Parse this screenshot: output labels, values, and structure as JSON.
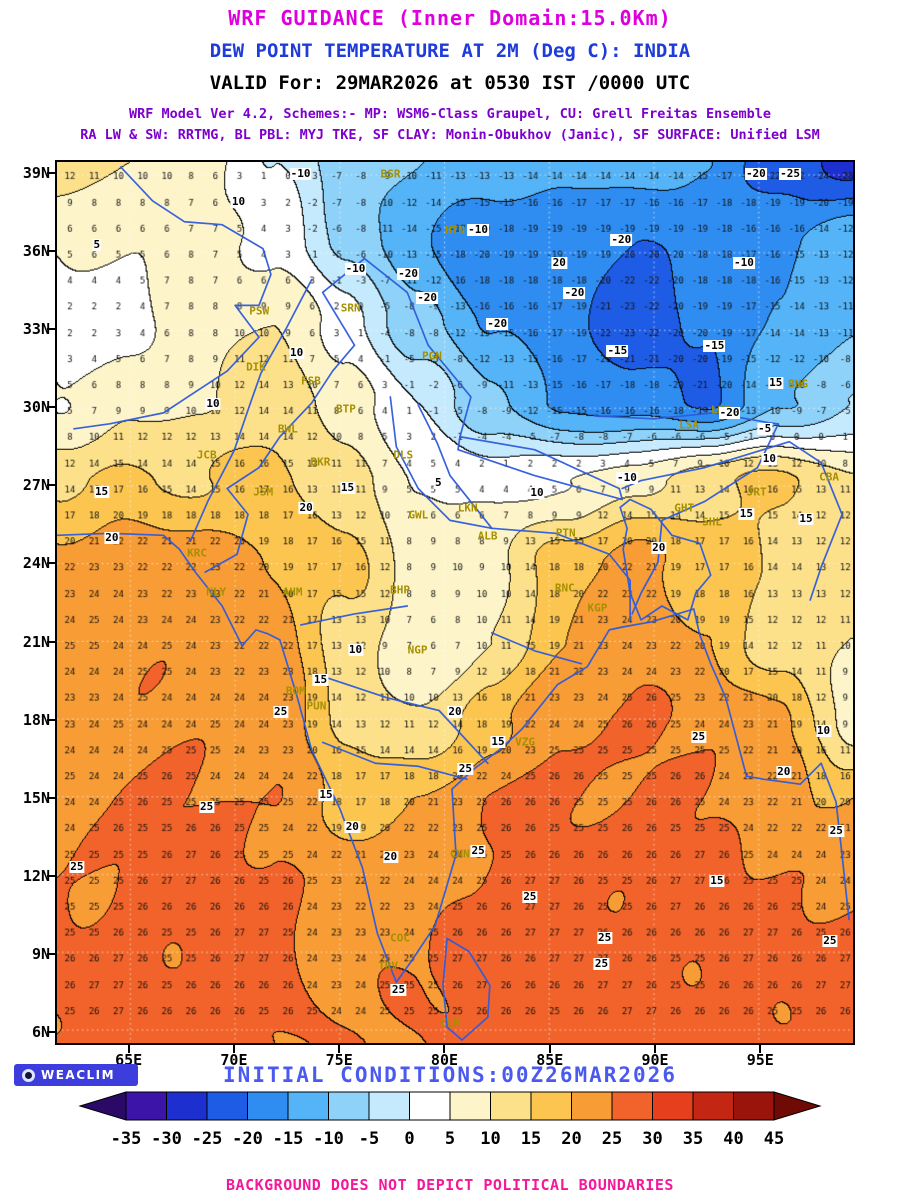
{
  "titles": {
    "line1": "WRF GUIDANCE (Inner Domain:15.0Km)",
    "line2": "DEW POINT TEMPERATURE AT 2M (Deg C): INDIA",
    "line3": "VALID For: 29MAR2026 at 0530 IST /0000 UTC",
    "line4": "WRF Model Ver 4.2, Schemes:- MP: WSM6-Class Graupel, CU: Grell Freitas Ensemble",
    "line5": "RA LW & SW: RRTMG, BL PBL: MYJ TKE, SF CLAY: Monin-Obukhov (Janic), SF SURFACE: Unified LSM"
  },
  "colors": {
    "title1": "#dd00dd",
    "title2": "#1f3cd8",
    "title3": "#000000",
    "schemes": "#7d00cc",
    "initial": "#4a5af0",
    "footer": "#f5189b",
    "station": "#a68f00",
    "geo": "#2e5bdb"
  },
  "axes": {
    "lat_ticks": [
      "39N",
      "36N",
      "33N",
      "30N",
      "27N",
      "24N",
      "21N",
      "18N",
      "15N",
      "12N",
      "9N",
      "6N"
    ],
    "lon_ticks": [
      "65E",
      "70E",
      "75E",
      "80E",
      "85E",
      "90E",
      "95E"
    ]
  },
  "footer": {
    "logo_text": "WEACLIM",
    "initial_conditions": "INITIAL CONDITIONS:00Z26MAR2026",
    "disclaimer": "BACKGROUND DOES NOT DEPICT POLITICAL BOUNDARIES"
  },
  "chart_data": {
    "type": "heatmap",
    "title": "DEW POINT TEMPERATURE AT 2M (Deg C): INDIA",
    "model": "WRF GUIDANCE (Inner Domain:15.0Km)",
    "valid_time": "29MAR2026 at 0530 IST /0000 UTC",
    "init_time": "00Z26MAR2026",
    "units": "Deg C",
    "contour_interval_c": 5,
    "domain": {
      "lon_min": 61.5,
      "lon_max": 99.5,
      "lat_min": 5.5,
      "lat_max": 39.5
    },
    "dewpoint_grid_c": [
      [
        12,
        10,
        8,
        0,
        -8,
        -10,
        -12,
        -14,
        -13,
        -15,
        -23,
        -27
      ],
      [
        6,
        5,
        7,
        4,
        -6,
        -15,
        -20,
        -18,
        -21,
        -18,
        -15,
        -12
      ],
      [
        2,
        3,
        8,
        10,
        2,
        -8,
        -15,
        -18,
        -23,
        -20,
        -15,
        -10
      ],
      [
        5,
        8,
        10,
        14,
        8,
        0,
        -10,
        -15,
        -18,
        -20,
        -10,
        -6
      ],
      [
        14,
        16,
        15,
        16,
        12,
        5,
        3,
        5,
        8,
        14,
        16,
        10
      ],
      [
        22,
        23,
        22,
        20,
        17,
        8,
        9,
        18,
        22,
        17,
        14,
        12
      ],
      [
        24,
        24,
        24,
        22,
        12,
        6,
        10,
        20,
        24,
        20,
        12,
        10
      ],
      [
        24,
        24,
        24,
        24,
        14,
        10,
        18,
        25,
        25,
        24,
        22,
        8
      ],
      [
        25,
        25,
        25,
        25,
        18,
        20,
        25,
        26,
        25,
        25,
        22,
        20
      ],
      [
        25,
        26,
        26,
        26,
        22,
        24,
        26,
        26,
        26,
        26,
        25,
        25
      ],
      [
        26,
        26,
        26,
        26,
        24,
        25,
        26,
        27,
        26,
        26,
        26,
        26
      ],
      [
        26,
        26,
        26,
        26,
        25,
        24,
        26,
        26,
        26,
        26,
        26,
        26
      ]
    ],
    "colorbar": {
      "tick_labels": [
        "-35",
        "-30",
        "-25",
        "-20",
        "-15",
        "-10",
        "-5",
        "0",
        "5",
        "10",
        "15",
        "20",
        "25",
        "30",
        "35",
        "40",
        "45"
      ],
      "arrow_low_color": "#2a0a66",
      "arrow_high_color": "#6f0a05",
      "segment_colors": [
        "#3d14a8",
        "#1e2fd0",
        "#1f5ce6",
        "#2f8df2",
        "#54b4f7",
        "#8ed2fa",
        "#c6eafd",
        "#ffffff",
        "#fdf5c9",
        "#fce08a",
        "#fbc550",
        "#f89c35",
        "#f1632a",
        "#e63f1e",
        "#c32613",
        "#9b140b"
      ]
    },
    "stations": [
      {
        "id": "BSR",
        "x": 41.9,
        "y": 1.4
      },
      {
        "id": "HTN",
        "x": 50.0,
        "y": 7.7
      },
      {
        "id": "PSW",
        "x": 25.4,
        "y": 16.9
      },
      {
        "id": "SRN",
        "x": 36.9,
        "y": 16.6
      },
      {
        "id": "DIK",
        "x": 25.0,
        "y": 23.3
      },
      {
        "id": "PGN",
        "x": 47.1,
        "y": 22.0
      },
      {
        "id": "FSB",
        "x": 31.9,
        "y": 24.9
      },
      {
        "id": "BNG",
        "x": 93.1,
        "y": 25.2
      },
      {
        "id": "BTP",
        "x": 36.3,
        "y": 28.0
      },
      {
        "id": "BWL",
        "x": 29.0,
        "y": 30.3
      },
      {
        "id": "LNZ",
        "x": 83.4,
        "y": 28.2
      },
      {
        "id": "LSA",
        "x": 79.4,
        "y": 29.9
      },
      {
        "id": "JCB",
        "x": 18.8,
        "y": 33.3
      },
      {
        "id": "BKR",
        "x": 33.1,
        "y": 34.1
      },
      {
        "id": "DLS",
        "x": 43.5,
        "y": 33.3
      },
      {
        "id": "CBA",
        "x": 97.0,
        "y": 35.8
      },
      {
        "id": "JSM",
        "x": 25.9,
        "y": 37.5
      },
      {
        "id": "JRT",
        "x": 87.9,
        "y": 37.5
      },
      {
        "id": "GHT",
        "x": 78.8,
        "y": 39.3
      },
      {
        "id": "SHL",
        "x": 82.3,
        "y": 40.9
      },
      {
        "id": "LKN",
        "x": 51.6,
        "y": 39.3
      },
      {
        "id": "GWL",
        "x": 45.4,
        "y": 40.1
      },
      {
        "id": "ALB",
        "x": 54.1,
        "y": 42.4
      },
      {
        "id": "PTN",
        "x": 63.9,
        "y": 42.1
      },
      {
        "id": "KRC",
        "x": 17.6,
        "y": 44.4
      },
      {
        "id": "NLY",
        "x": 20.0,
        "y": 48.8
      },
      {
        "id": "AHM",
        "x": 29.6,
        "y": 48.8
      },
      {
        "id": "BHP",
        "x": 43.1,
        "y": 48.6
      },
      {
        "id": "RNC",
        "x": 63.8,
        "y": 48.4
      },
      {
        "id": "KGP",
        "x": 67.9,
        "y": 50.6
      },
      {
        "id": "NGP",
        "x": 45.3,
        "y": 55.4
      },
      {
        "id": "BOM",
        "x": 30.0,
        "y": 60.0
      },
      {
        "id": "PUN",
        "x": 32.6,
        "y": 61.8
      },
      {
        "id": "VZG",
        "x": 58.8,
        "y": 65.8
      },
      {
        "id": "CHN",
        "x": 50.6,
        "y": 78.5
      },
      {
        "id": "COC",
        "x": 43.1,
        "y": 88.1
      },
      {
        "id": "TRV",
        "x": 41.6,
        "y": 91.3
      },
      {
        "id": "CLM",
        "x": 49.4,
        "y": 97.7
      }
    ],
    "contour_labels": [
      {
        "v": "-10",
        "x": 30.6,
        "y": 1.4
      },
      {
        "v": "10",
        "x": 22.8,
        "y": 4.5
      },
      {
        "v": "-10",
        "x": 52.9,
        "y": 7.7
      },
      {
        "v": "5",
        "x": 5.0,
        "y": 9.4
      },
      {
        "v": "-10",
        "x": 37.5,
        "y": 12.2
      },
      {
        "v": "-20",
        "x": 44.1,
        "y": 12.7
      },
      {
        "v": "20",
        "x": 63.1,
        "y": 11.5
      },
      {
        "v": "-20",
        "x": 70.9,
        "y": 8.8
      },
      {
        "v": "-10",
        "x": 86.3,
        "y": 11.5
      },
      {
        "v": "-20",
        "x": 87.8,
        "y": 1.4
      },
      {
        "v": "-25",
        "x": 92.1,
        "y": 1.4
      },
      {
        "v": "-20",
        "x": 46.5,
        "y": 15.4
      },
      {
        "v": "-20",
        "x": 65.0,
        "y": 14.9
      },
      {
        "v": "-20",
        "x": 55.3,
        "y": 18.4
      },
      {
        "v": "-15",
        "x": 70.4,
        "y": 21.5
      },
      {
        "v": "-15",
        "x": 82.6,
        "y": 20.9
      },
      {
        "v": "10",
        "x": 30.1,
        "y": 21.7
      },
      {
        "v": "15",
        "x": 90.3,
        "y": 25.1
      },
      {
        "v": "10",
        "x": 19.6,
        "y": 27.5
      },
      {
        "v": "-20",
        "x": 84.5,
        "y": 28.5
      },
      {
        "v": "-5",
        "x": 88.9,
        "y": 30.3
      },
      {
        "v": "10",
        "x": 89.5,
        "y": 33.7
      },
      {
        "v": "-10",
        "x": 71.6,
        "y": 35.9
      },
      {
        "v": "15",
        "x": 5.6,
        "y": 37.5
      },
      {
        "v": "15",
        "x": 36.5,
        "y": 37.0
      },
      {
        "v": "5",
        "x": 47.9,
        "y": 36.4
      },
      {
        "v": "10",
        "x": 60.3,
        "y": 37.6
      },
      {
        "v": "20",
        "x": 6.9,
        "y": 42.7
      },
      {
        "v": "20",
        "x": 31.3,
        "y": 39.3
      },
      {
        "v": "20",
        "x": 75.6,
        "y": 43.8
      },
      {
        "v": "15",
        "x": 86.6,
        "y": 39.9
      },
      {
        "v": "15",
        "x": 94.1,
        "y": 40.5
      },
      {
        "v": "10",
        "x": 37.5,
        "y": 55.4
      },
      {
        "v": "15",
        "x": 33.1,
        "y": 58.8
      },
      {
        "v": "25",
        "x": 28.1,
        "y": 62.4
      },
      {
        "v": "20",
        "x": 50.0,
        "y": 62.4
      },
      {
        "v": "15",
        "x": 55.4,
        "y": 65.8
      },
      {
        "v": "25",
        "x": 80.6,
        "y": 65.3
      },
      {
        "v": "10",
        "x": 96.3,
        "y": 64.6
      },
      {
        "v": "20",
        "x": 91.3,
        "y": 69.2
      },
      {
        "v": "25",
        "x": 51.3,
        "y": 68.9
      },
      {
        "v": "15",
        "x": 33.8,
        "y": 71.8
      },
      {
        "v": "25",
        "x": 18.8,
        "y": 73.2
      },
      {
        "v": "20",
        "x": 37.1,
        "y": 75.5
      },
      {
        "v": "25",
        "x": 97.9,
        "y": 75.9
      },
      {
        "v": "20",
        "x": 41.9,
        "y": 78.9
      },
      {
        "v": "25",
        "x": 52.9,
        "y": 78.2
      },
      {
        "v": "25",
        "x": 59.4,
        "y": 83.4
      },
      {
        "v": "15",
        "x": 82.9,
        "y": 81.6
      },
      {
        "v": "25",
        "x": 2.5,
        "y": 80.0
      },
      {
        "v": "25",
        "x": 68.8,
        "y": 88.1
      },
      {
        "v": "25",
        "x": 68.4,
        "y": 91.0
      },
      {
        "v": "25",
        "x": 42.9,
        "y": 94.0
      },
      {
        "v": "25",
        "x": 97.1,
        "y": 88.4
      }
    ],
    "geo_paths": [
      "M 0 375 L 53 373 L 107 375 L 123 389 L 139 412 L 166 446 L 186 486 L 200 470 L 212 474 L 224 480 L 241 536 L 256 591 L 284 649 L 307 709 L 322 775 L 341 824 L 356 803 L 380 767 L 401 696 L 397 630 L 420 609 L 444 591 L 467 570 L 503 525 L 533 507 L 555 470 L 569 467 L 597 462 L 640 449 L 646 475 L 657 504 L 672 538 L 693 617 L 710 620 L 725 622 L 747 625 L 768 604 L 783 643 L 789 696 L 796 761",
      "M 392 780 L 414 793 L 435 827 L 433 859 L 407 882 L 392 869 L 388 827 Z",
      "M 256 118 L 231 166 L 205 212 L 192 249 L 178 290 L 152 340 L 134 381",
      "M 363 244 L 382 282 L 395 315 L 437 368 L 501 373 L 555 394 L 576 420 L 576 460",
      "M 335 236 L 341 286 L 363 328 L 395 360 L 437 368",
      "M 540 255 L 600 258 L 660 252 L 716 262 L 725 263 L 704 307 L 651 341 L 608 360 L 604 402 L 587 433 L 578 454",
      "M 262 515 L 331 538 L 384 551 L 433 604",
      "M 267 583 L 320 604 L 363 607 L 412 620",
      "M 245 465 L 299 454 L 352 446",
      "M 437 473 L 480 491 L 527 504",
      "M 149 412 L 181 394 L 192 354 L 171 328 L 203 307 L 224 276 L 256 242 L 277 210 L 299 184 L 267 131 L 309 97",
      "M 64 5 L 96 39 L 128 60 L 166 63 L 207 87 L 215 113 L 203 144 L 179 144 L 203 176 L 171 210 L 107 252 L 53 263 L 17 268",
      "M 405 276 L 480 289 L 565 328 L 568 339 L 480 315 L 403 289 Z",
      "M 566 347 L 576 339 L 597 349 L 618 375 L 646 383 L 657 415 L 642 433 L 634 460 L 608 446 L 587 460 L 576 433 L 569 389 L 573 368 Z",
      "M 309 97 L 352 131 L 373 184 L 416 236 L 405 276",
      "M 568 328 L 587 320 L 651 307 L 736 281 L 768 302 L 789 354 L 768 407 L 757 440"
    ]
  }
}
